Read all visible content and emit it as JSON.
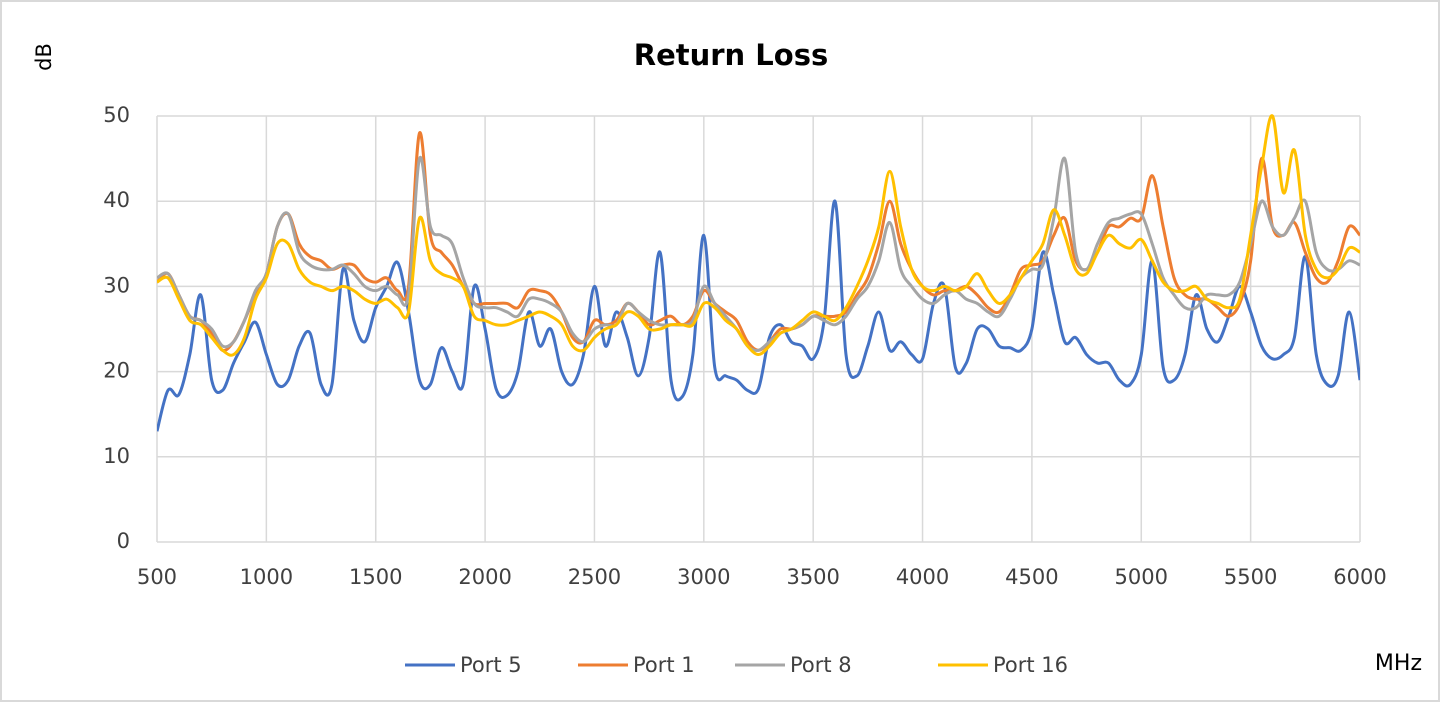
{
  "chart_data": {
    "type": "line",
    "title": "Return Loss",
    "y_label": "dB",
    "x_label": "MHz",
    "x": [
      500,
      550,
      600,
      650,
      700,
      750,
      800,
      850,
      900,
      950,
      1000,
      1050,
      1100,
      1150,
      1200,
      1250,
      1300,
      1350,
      1400,
      1450,
      1500,
      1550,
      1600,
      1650,
      1700,
      1750,
      1800,
      1850,
      1900,
      1950,
      2000,
      2050,
      2100,
      2150,
      2200,
      2250,
      2300,
      2350,
      2400,
      2450,
      2500,
      2550,
      2600,
      2650,
      2700,
      2750,
      2800,
      2850,
      2900,
      2950,
      3000,
      3050,
      3100,
      3150,
      3200,
      3250,
      3300,
      3350,
      3400,
      3450,
      3500,
      3550,
      3600,
      3650,
      3700,
      3750,
      3800,
      3850,
      3900,
      3950,
      4000,
      4050,
      4100,
      4150,
      4200,
      4250,
      4300,
      4350,
      4400,
      4450,
      4500,
      4550,
      4600,
      4650,
      4700,
      4750,
      4800,
      4850,
      4900,
      4950,
      5000,
      5050,
      5100,
      5150,
      5200,
      5250,
      5300,
      5350,
      5400,
      5450,
      5500,
      5550,
      5600,
      5650,
      5700,
      5750,
      5800,
      5850,
      5900,
      5950,
      6000
    ],
    "series": [
      {
        "name": "Port 5",
        "color": "#4472c4",
        "values": [
          13,
          17.8,
          17.3,
          22,
          29,
          19,
          17.8,
          21,
          23.5,
          25.8,
          22,
          18.5,
          19,
          23,
          24.5,
          18.5,
          18.5,
          32,
          26,
          23.5,
          27.5,
          30,
          32.8,
          27,
          19,
          18.5,
          22.8,
          20,
          18.5,
          30,
          25,
          18,
          17.2,
          20,
          27,
          23,
          25,
          20,
          18.5,
          22,
          30,
          23,
          27,
          24,
          19.5,
          24,
          34,
          19,
          17,
          22,
          36,
          20.5,
          19.5,
          19,
          17.8,
          18,
          24,
          25.5,
          23.5,
          23,
          21.5,
          26,
          40,
          22,
          19.5,
          23,
          27,
          22.5,
          23.5,
          22,
          21.5,
          28,
          30,
          20.5,
          21,
          25,
          25,
          23,
          22.8,
          22.5,
          25,
          34,
          29,
          23.5,
          24,
          22,
          21,
          21,
          19,
          18.5,
          22,
          33,
          20.5,
          19,
          22,
          29,
          25,
          23.5,
          26.5,
          30,
          27,
          23,
          21.5,
          22,
          24,
          33.5,
          22,
          18.5,
          19.5,
          27,
          19
        ]
      },
      {
        "name": "Port 1",
        "color": "#ed7d31",
        "values": [
          30.5,
          31.5,
          29,
          26.5,
          26,
          24.5,
          22.5,
          23.5,
          26,
          29,
          31.5,
          37,
          38.5,
          35,
          33.5,
          33,
          32,
          32.5,
          32.5,
          31,
          30.5,
          31,
          29.5,
          30,
          48,
          36,
          34,
          32.5,
          30,
          28,
          28,
          28,
          28,
          27.5,
          29.5,
          29.5,
          29,
          27,
          24,
          23.5,
          26,
          25.5,
          26,
          28,
          27,
          25.5,
          26,
          26.5,
          25.5,
          26.5,
          29.5,
          28,
          27,
          26,
          23.5,
          22.5,
          23.5,
          25,
          25,
          25.5,
          26.5,
          26.5,
          26.5,
          27,
          29,
          31,
          35,
          40,
          35,
          32,
          30,
          29,
          29.5,
          29.5,
          30,
          29,
          27.5,
          27,
          29,
          32,
          32.5,
          33,
          36,
          38,
          33,
          32,
          34,
          37,
          37,
          38,
          38,
          43,
          37,
          31,
          29,
          28.5,
          28.5,
          27.5,
          26.5,
          28,
          33,
          45,
          37,
          36,
          37.5,
          34,
          31,
          30.5,
          33,
          37,
          36
        ]
      },
      {
        "name": "Port 8",
        "color": "#a5a5a5",
        "values": [
          31,
          31.5,
          29,
          26.5,
          26,
          25,
          23,
          23.5,
          26,
          29.5,
          31.5,
          37,
          38.5,
          34,
          32.5,
          32,
          32,
          32.5,
          31.5,
          30,
          29.5,
          30,
          29,
          29,
          45,
          37,
          36,
          35,
          31,
          28,
          27.5,
          27.5,
          27,
          26.5,
          28.5,
          28.5,
          28,
          27,
          24.5,
          23.5,
          25,
          25.5,
          25.5,
          28,
          27,
          26,
          25.5,
          25.5,
          25.5,
          26,
          30,
          28,
          26.5,
          25,
          23,
          22.5,
          23.5,
          24.5,
          25,
          25.5,
          26.5,
          26,
          25.5,
          26.5,
          28.5,
          30,
          33,
          37.5,
          32,
          30,
          28.5,
          28,
          29,
          29.5,
          28.5,
          28,
          27,
          26.5,
          28.5,
          31,
          32,
          32.5,
          38,
          45,
          34,
          32,
          35,
          37.5,
          38,
          38.5,
          38.5,
          35,
          31,
          29,
          27.5,
          27.5,
          29,
          29,
          29,
          30.5,
          35,
          40,
          37,
          36,
          38,
          40,
          34,
          32,
          32,
          33,
          32.5
        ]
      },
      {
        "name": "Port 16",
        "color": "#ffc000",
        "values": [
          30.5,
          31,
          28.5,
          26,
          25.5,
          24,
          22.5,
          22,
          24,
          28.5,
          31,
          35,
          35,
          32,
          30.5,
          30,
          29.5,
          30,
          29.5,
          28.5,
          28,
          28.5,
          27.5,
          27,
          38,
          33,
          31.5,
          31,
          30,
          26.5,
          26,
          25.5,
          25.5,
          26,
          26.5,
          27,
          26.5,
          25.5,
          23,
          22.5,
          24,
          25,
          25.5,
          27,
          26.5,
          25,
          25,
          25.5,
          25.5,
          25.5,
          28,
          27.5,
          26,
          25,
          23,
          22,
          23,
          24.5,
          25,
          26,
          27,
          26.5,
          26,
          27.5,
          30,
          33,
          37,
          43.5,
          37,
          32,
          30,
          29.5,
          30,
          29.5,
          30,
          31.5,
          29.5,
          28,
          29,
          31,
          33,
          35,
          39,
          36,
          32,
          31.5,
          34,
          36,
          35,
          34.5,
          35.5,
          33,
          30.5,
          29.5,
          29.5,
          30,
          28.5,
          28,
          27.5,
          28.5,
          36,
          44,
          50,
          41,
          46,
          36,
          32,
          31,
          32,
          34.5,
          34
        ]
      }
    ],
    "xlim": [
      500,
      6000
    ],
    "xticks": [
      500,
      1000,
      1500,
      2000,
      2500,
      3000,
      3500,
      4000,
      4500,
      5000,
      5500,
      6000
    ],
    "ylim": [
      0,
      50
    ],
    "yticks": [
      0,
      10,
      20,
      30,
      40,
      50
    ],
    "grid": true,
    "legend": "bottom"
  }
}
